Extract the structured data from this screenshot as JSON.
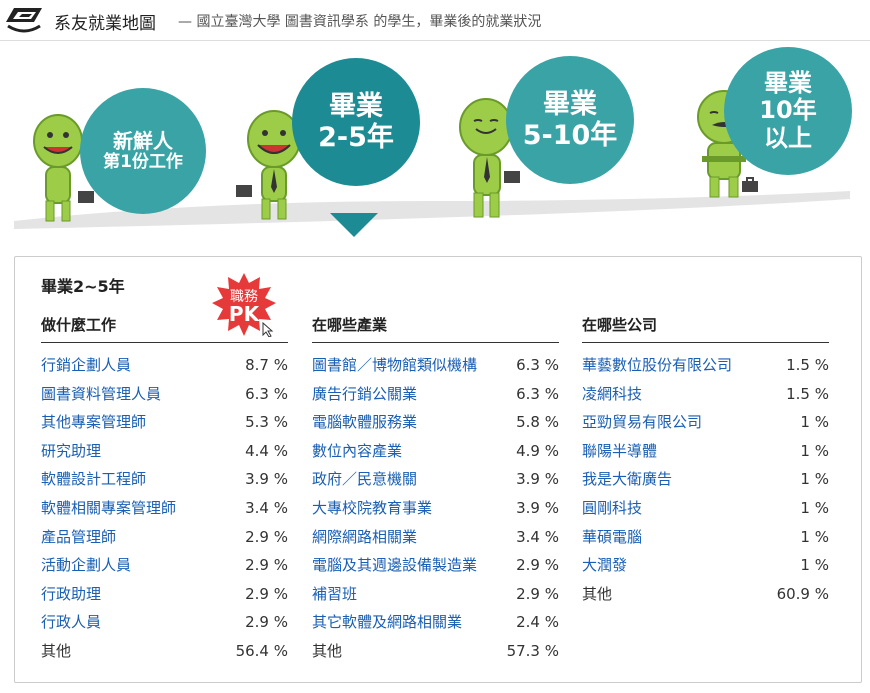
{
  "header": {
    "title": "系友就業地圖",
    "subtitle": "— 國立臺灣大學 圖書資訊學系 的學生，畢業後的就業狀況"
  },
  "stages": [
    {
      "lines": [
        "新鮮人",
        "第1份工作"
      ]
    },
    {
      "lines": [
        "畢業",
        "2-5年"
      ]
    },
    {
      "lines": [
        "畢業",
        "5-10年"
      ]
    },
    {
      "lines": [
        "畢業",
        "10年",
        "以上"
      ]
    }
  ],
  "panel": {
    "title": "畢業2~5年",
    "badge": {
      "line1": "職務",
      "line2": "PK"
    },
    "jobs": {
      "heading": "做什麼工作",
      "rows": [
        {
          "name": "行銷企劃人員",
          "pct": "8.7 %"
        },
        {
          "name": "圖書資料管理人員",
          "pct": "6.3 %"
        },
        {
          "name": "其他專案管理師",
          "pct": "5.3 %"
        },
        {
          "name": "研究助理",
          "pct": "4.4 %"
        },
        {
          "name": "軟體設計工程師",
          "pct": "3.9 %"
        },
        {
          "name": "軟體相關專案管理師",
          "pct": "3.4 %"
        },
        {
          "name": "產品管理師",
          "pct": "2.9 %"
        },
        {
          "name": "活動企劃人員",
          "pct": "2.9 %"
        },
        {
          "name": "行政助理",
          "pct": "2.9 %"
        },
        {
          "name": "行政人員",
          "pct": "2.9 %"
        },
        {
          "name": "其他",
          "pct": "56.4 %"
        }
      ]
    },
    "industries": {
      "heading": "在哪些產業",
      "rows": [
        {
          "name": "圖書館／博物館類似機構",
          "pct": "6.3 %"
        },
        {
          "name": "廣告行銷公關業",
          "pct": "6.3 %"
        },
        {
          "name": "電腦軟體服務業",
          "pct": "5.8 %"
        },
        {
          "name": "數位內容產業",
          "pct": "4.9 %"
        },
        {
          "name": "政府／民意機關",
          "pct": "3.9 %"
        },
        {
          "name": "大專校院教育事業",
          "pct": "3.9 %"
        },
        {
          "name": "網際網路相關業",
          "pct": "3.4 %"
        },
        {
          "name": "電腦及其週邊設備製造業",
          "pct": "2.9 %"
        },
        {
          "name": "補習班",
          "pct": "2.9 %"
        },
        {
          "name": "其它軟體及網路相關業",
          "pct": "2.4 %"
        },
        {
          "name": "其他",
          "pct": "57.3 %"
        }
      ]
    },
    "companies": {
      "heading": "在哪些公司",
      "rows": [
        {
          "name": "華藝數位股份有限公司",
          "pct": "1.5 %"
        },
        {
          "name": "凌網科技",
          "pct": "1.5 %"
        },
        {
          "name": "亞勁貿易有限公司",
          "pct": "1 %"
        },
        {
          "name": "聯陽半導體",
          "pct": "1 %"
        },
        {
          "name": "我是大衛廣告",
          "pct": "1 %"
        },
        {
          "name": "圓剛科技",
          "pct": "1 %"
        },
        {
          "name": "華碩電腦",
          "pct": "1 %"
        },
        {
          "name": "大潤發",
          "pct": "1 %"
        },
        {
          "name": "其他",
          "pct": "60.9 %"
        }
      ]
    }
  }
}
